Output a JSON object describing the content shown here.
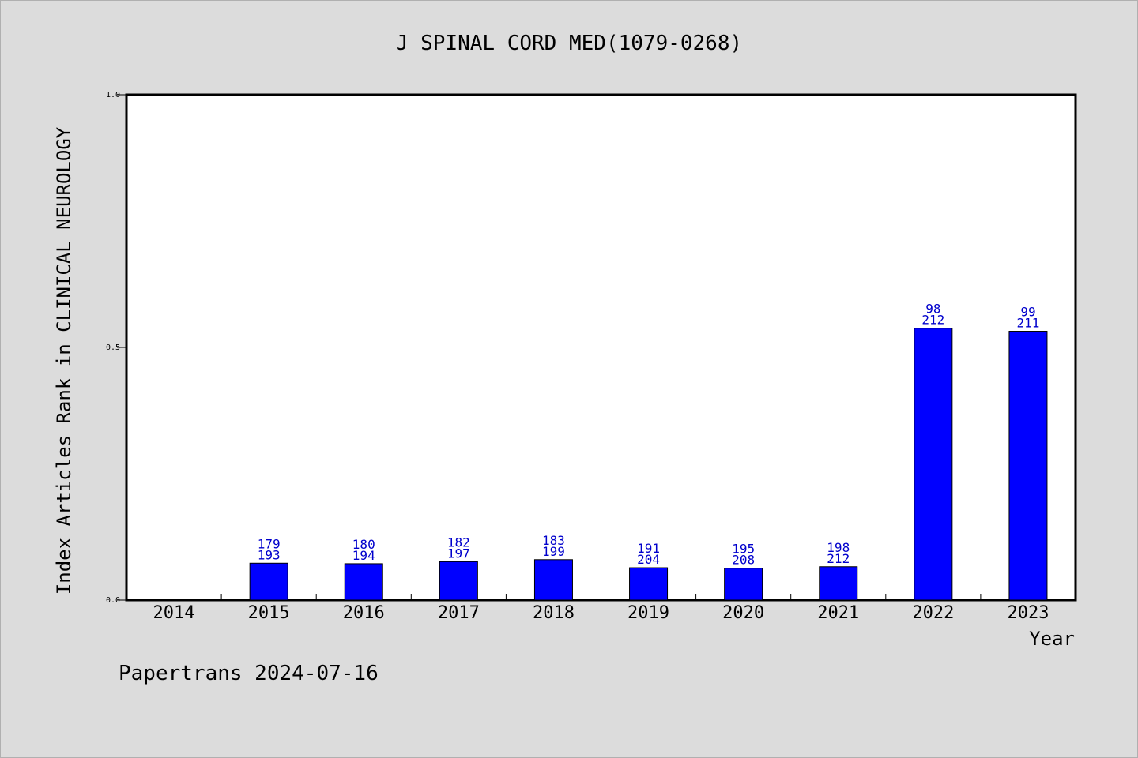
{
  "chart_data": {
    "type": "bar",
    "title": "J SPINAL CORD MED(1079-0268)",
    "xlabel": "Year",
    "ylabel": "Index Articles Rank in CLINICAL NEUROLOGY",
    "footer": "Papertrans 2024-07-16",
    "ylim": [
      0,
      1.0
    ],
    "yticks": [
      "0.0",
      "0.5",
      "1.0"
    ],
    "grid": false,
    "categories": [
      "2014",
      "2015",
      "2016",
      "2017",
      "2018",
      "2019",
      "2020",
      "2021",
      "2022",
      "2023"
    ],
    "values": [
      null,
      0.073,
      0.072,
      0.076,
      0.08,
      0.064,
      0.063,
      0.066,
      0.538,
      0.532
    ],
    "labels_top": [
      "",
      "179",
      "180",
      "182",
      "183",
      "191",
      "195",
      "198",
      "98",
      "99"
    ],
    "labels_bottom": [
      "",
      "193",
      "194",
      "197",
      "199",
      "204",
      "208",
      "212",
      "212",
      "211"
    ],
    "bar_color": "#0000ff",
    "label_color": "#0000cc",
    "background_color": "#dcdcdc"
  }
}
